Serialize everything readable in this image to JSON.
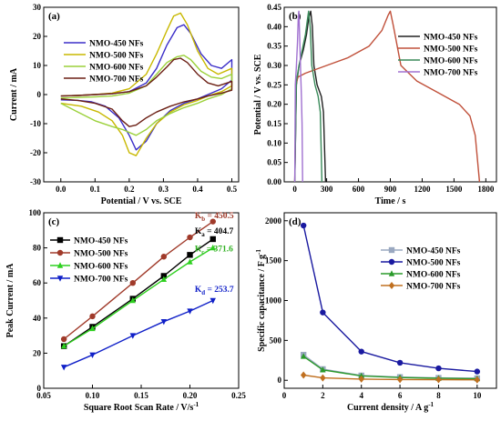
{
  "chart_data": [
    {
      "panel": "(a)",
      "type": "line",
      "xlabel": "Potential / V vs. SCE",
      "ylabel": "Current / mA",
      "xlim": [
        -0.05,
        0.52
      ],
      "ylim": [
        -30,
        30
      ],
      "xticks": [
        "0.0",
        "0.1",
        "0.2",
        "0.3",
        "0.4",
        "0.5"
      ],
      "xtick_values": [
        0,
        0.1,
        0.2,
        0.3,
        0.4,
        0.5
      ],
      "yticks": [
        "-30",
        "-20",
        "-10",
        "0",
        "10",
        "20",
        "30"
      ],
      "ytick_values": [
        -30,
        -20,
        -10,
        0,
        10,
        20,
        30
      ],
      "legend_position": "top-left",
      "series": [
        {
          "name": "NMO-450 NFs",
          "color": "#3b2ec8",
          "x": [
            0,
            0.05,
            0.1,
            0.15,
            0.2,
            0.25,
            0.28,
            0.31,
            0.34,
            0.36,
            0.38,
            0.41,
            0.44,
            0.47,
            0.5,
            0.5,
            0.47,
            0.43,
            0.4,
            0.36,
            0.32,
            0.28,
            0.25,
            0.22,
            0.2,
            0.17,
            0.13,
            0.09,
            0.05,
            0
          ],
          "y": [
            -0.5,
            -0.3,
            0,
            0.3,
            1,
            4,
            9,
            17,
            23,
            24,
            21,
            14,
            10,
            9,
            12,
            5,
            2,
            0,
            -1.5,
            -3,
            -5.5,
            -10,
            -16,
            -19,
            -14,
            -8,
            -4,
            -2.5,
            -2,
            -1.8
          ]
        },
        {
          "name": "NMO-500 NFs",
          "color": "#c8b800",
          "x": [
            0,
            0.05,
            0.1,
            0.15,
            0.2,
            0.25,
            0.28,
            0.31,
            0.33,
            0.35,
            0.37,
            0.4,
            0.43,
            0.46,
            0.5,
            0.5,
            0.47,
            0.43,
            0.4,
            0.36,
            0.32,
            0.28,
            0.25,
            0.22,
            0.2,
            0.18,
            0.15,
            0.11,
            0.06,
            0
          ],
          "y": [
            -0.5,
            -0.3,
            0,
            0.5,
            2,
            7,
            14,
            22,
            27,
            28,
            24,
            15,
            9,
            7,
            9,
            3,
            1,
            -0.5,
            -2,
            -3.5,
            -6,
            -10,
            -15,
            -21,
            -20,
            -14,
            -9,
            -6,
            -4,
            -3
          ]
        },
        {
          "name": "NMO-600 NFs",
          "color": "#9bd13a",
          "x": [
            0,
            0.05,
            0.1,
            0.15,
            0.2,
            0.25,
            0.28,
            0.31,
            0.34,
            0.36,
            0.38,
            0.41,
            0.44,
            0.47,
            0.5,
            0.5,
            0.47,
            0.43,
            0.4,
            0.36,
            0.32,
            0.28,
            0.25,
            0.22,
            0.2,
            0.18,
            0.15,
            0.1,
            0.05,
            0
          ],
          "y": [
            -1.2,
            -1,
            -0.8,
            -0.5,
            0.5,
            3,
            7,
            11,
            13,
            13.5,
            12,
            8,
            6,
            5.5,
            7,
            2,
            0,
            -1.5,
            -3,
            -4.5,
            -6.5,
            -9,
            -12,
            -14,
            -13,
            -12,
            -11,
            -9,
            -6,
            -3
          ]
        },
        {
          "name": "NMO-700 NFs",
          "color": "#6b1f14",
          "x": [
            0,
            0.05,
            0.1,
            0.15,
            0.2,
            0.25,
            0.28,
            0.31,
            0.33,
            0.35,
            0.37,
            0.4,
            0.43,
            0.46,
            0.5,
            0.5,
            0.47,
            0.43,
            0.4,
            0.36,
            0.32,
            0.28,
            0.25,
            0.22,
            0.2,
            0.18,
            0.15,
            0.1,
            0.05,
            0
          ],
          "y": [
            -0.5,
            -0.3,
            0,
            0.3,
            1,
            3,
            6,
            9.5,
            12,
            12.5,
            11,
            7,
            4,
            3,
            4.5,
            1.5,
            0.5,
            -0.5,
            -1.5,
            -2.5,
            -4,
            -6,
            -8,
            -10.5,
            -11,
            -9,
            -5,
            -3,
            -2,
            -1.5
          ]
        }
      ]
    },
    {
      "panel": "(b)",
      "type": "line",
      "xlabel": "Time / s",
      "ylabel": "Potential / V vs. SCE",
      "xlim": [
        -100,
        1900
      ],
      "ylim": [
        0,
        0.45
      ],
      "xticks": [
        "0",
        "300",
        "600",
        "900",
        "1200",
        "1500",
        "1800"
      ],
      "xtick_values": [
        0,
        300,
        600,
        900,
        1200,
        1500,
        1800
      ],
      "yticks": [
        "0.00",
        "0.05",
        "0.10",
        "0.15",
        "0.20",
        "0.25",
        "0.30",
        "0.35",
        "0.40",
        "0.45"
      ],
      "ytick_values": [
        0,
        0.05,
        0.1,
        0.15,
        0.2,
        0.25,
        0.3,
        0.35,
        0.4,
        0.45
      ],
      "legend_position": "top-left",
      "series": [
        {
          "name": "NMO-450 NFs",
          "color": "#222222",
          "x": [
            0,
            15,
            40,
            80,
            110,
            130,
            150,
            165,
            180,
            210,
            250,
            270,
            290
          ],
          "y": [
            0,
            0.25,
            0.3,
            0.34,
            0.38,
            0.42,
            0.44,
            0.4,
            0.3,
            0.25,
            0.22,
            0.18,
            0
          ]
        },
        {
          "name": "NMO-500 NFs",
          "color": "#c0503a",
          "x": [
            0,
            10,
            30,
            100,
            300,
            500,
            700,
            820,
            880,
            900,
            930,
            1000,
            1150,
            1350,
            1550,
            1650,
            1700,
            1740
          ],
          "y": [
            0,
            0.25,
            0.27,
            0.28,
            0.3,
            0.32,
            0.35,
            0.39,
            0.43,
            0.44,
            0.4,
            0.3,
            0.26,
            0.23,
            0.2,
            0.17,
            0.12,
            0
          ]
        },
        {
          "name": "NMO-600 NFs",
          "color": "#3a8a5a",
          "x": [
            0,
            15,
            40,
            70,
            100,
            120,
            130,
            145,
            160,
            190,
            220,
            240,
            255
          ],
          "y": [
            0,
            0.26,
            0.3,
            0.34,
            0.38,
            0.42,
            0.44,
            0.4,
            0.3,
            0.25,
            0.22,
            0.18,
            0
          ]
        },
        {
          "name": "NMO-700 NFs",
          "color": "#a070d0",
          "x": [
            0,
            5,
            15,
            25,
            32,
            38,
            45,
            55,
            62,
            68,
            73
          ],
          "y": [
            0,
            0.25,
            0.3,
            0.36,
            0.42,
            0.44,
            0.38,
            0.28,
            0.22,
            0.15,
            0
          ]
        }
      ]
    },
    {
      "panel": "(c)",
      "type": "line",
      "xlabel": "Square Root Scan Rate / V/s",
      "xlabel_sup": "-1",
      "ylabel": "Peak Current / mA",
      "xlim": [
        0.05,
        0.25
      ],
      "ylim": [
        0,
        100
      ],
      "xticks": [
        "0.05",
        "0.10",
        "0.15",
        "0.20",
        "0.25"
      ],
      "xtick_values": [
        0.05,
        0.1,
        0.15,
        0.2,
        0.25
      ],
      "yticks": [
        "0",
        "20",
        "40",
        "60",
        "80",
        "100"
      ],
      "ytick_values": [
        0,
        20,
        40,
        60,
        80,
        100
      ],
      "legend_position": "top-left",
      "series": [
        {
          "name": "NMO-450 NFs",
          "color": "#000000",
          "marker": "square",
          "x": [
            0.0707,
            0.1,
            0.1414,
            0.1732,
            0.2,
            0.2236
          ],
          "y": [
            24,
            35,
            51,
            64,
            76,
            85
          ]
        },
        {
          "name": "NMO-500 NFs",
          "color": "#a03a2a",
          "marker": "circle",
          "x": [
            0.0707,
            0.1,
            0.1414,
            0.1732,
            0.2,
            0.2236
          ],
          "y": [
            28,
            41,
            60,
            75,
            86,
            95
          ]
        },
        {
          "name": "NMO-600 NFs",
          "color": "#2fd020",
          "marker": "triangle-up",
          "x": [
            0.0707,
            0.1,
            0.1414,
            0.1732,
            0.2,
            0.2236
          ],
          "y": [
            24,
            34,
            50,
            62,
            72,
            80
          ]
        },
        {
          "name": "NMO-700 NFs",
          "color": "#1020c8",
          "marker": "triangle-down",
          "x": [
            0.0707,
            0.1,
            0.1414,
            0.1732,
            0.2,
            0.2236
          ],
          "y": [
            12,
            19,
            30,
            38,
            44,
            50
          ]
        }
      ],
      "annotations": [
        {
          "K": "K",
          "sub": "b",
          "value": " = 450.5",
          "color": "#a03a2a",
          "at_x": 0.205,
          "at_y": 97
        },
        {
          "K": "K",
          "sub": "a",
          "value": " = 404.7",
          "color": "#000000",
          "at_x": 0.205,
          "at_y": 88
        },
        {
          "K": "K",
          "sub": "c",
          "value": " = 371.6",
          "color": "#2fb020",
          "at_x": 0.205,
          "at_y": 78
        },
        {
          "K": "K",
          "sub": "d",
          "value": " = 253.7",
          "color": "#1020c8",
          "at_x": 0.205,
          "at_y": 55
        }
      ]
    },
    {
      "panel": "(d)",
      "type": "line",
      "xlabel": "Current density / A g",
      "xlabel_sup": "-1",
      "ylabel": "Specific capacitance / F g",
      "ylabel_sup": "-1",
      "xlim": [
        0,
        11
      ],
      "ylim": [
        -100,
        2100
      ],
      "xticks": [
        "0",
        "2",
        "4",
        "6",
        "8",
        "10"
      ],
      "xtick_values": [
        0,
        2,
        4,
        6,
        8,
        10
      ],
      "yticks": [
        "0",
        "500",
        "1000",
        "1500",
        "2000"
      ],
      "ytick_values": [
        0,
        500,
        1000,
        1500,
        2000
      ],
      "legend_position": "top-right",
      "series": [
        {
          "name": "NMO-450 NFs",
          "color": "#9aa8c0",
          "marker": "square",
          "x": [
            1,
            2,
            4,
            6,
            8,
            10
          ],
          "y": [
            320,
            140,
            60,
            40,
            30,
            25
          ]
        },
        {
          "name": "NMO-500 NFs",
          "color": "#1a1aa0",
          "marker": "circle",
          "x": [
            1,
            2,
            4,
            6,
            8,
            10
          ],
          "y": [
            1940,
            850,
            360,
            220,
            150,
            110
          ]
        },
        {
          "name": "NMO-600 NFs",
          "color": "#2a9a2a",
          "marker": "triangle-up",
          "x": [
            1,
            2,
            4,
            6,
            8,
            10
          ],
          "y": [
            300,
            130,
            55,
            35,
            25,
            20
          ]
        },
        {
          "name": "NMO-700 NFs",
          "color": "#c07020",
          "marker": "diamond",
          "x": [
            1,
            2,
            4,
            6,
            8,
            10
          ],
          "y": [
            65,
            30,
            15,
            10,
            8,
            6
          ]
        }
      ]
    }
  ]
}
